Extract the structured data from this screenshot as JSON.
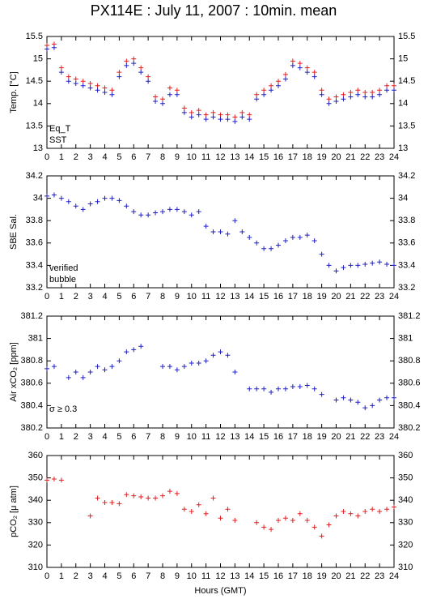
{
  "title": "PX114E : July 11, 2007 : 10min. mean",
  "chart_data": [
    {
      "type": "scatter",
      "ylabel": "Temp. [°C]",
      "xlim": [
        0,
        24
      ],
      "xticks": [
        0,
        1,
        2,
        3,
        4,
        5,
        6,
        7,
        8,
        9,
        10,
        11,
        12,
        13,
        14,
        15,
        16,
        17,
        18,
        19,
        20,
        21,
        22,
        23,
        24
      ],
      "ylim": [
        13,
        15.5
      ],
      "yticks": [
        13,
        13.5,
        14,
        14.5,
        15,
        15.5
      ],
      "x": [
        0,
        0.5,
        1,
        1.5,
        2,
        2.5,
        3,
        3.5,
        4,
        4.5,
        5,
        5.5,
        6,
        6.5,
        7,
        7.5,
        8,
        8.5,
        9,
        9.5,
        10,
        10.5,
        11,
        11.5,
        12,
        12.5,
        13,
        13.5,
        14,
        14.5,
        15,
        15.5,
        16,
        16.5,
        17,
        17.5,
        18,
        18.5,
        19,
        19.5,
        20,
        20.5,
        21,
        21.5,
        22,
        22.5,
        23,
        23.5,
        24
      ],
      "series": [
        {
          "name": "Eq_T",
          "color": "#e02020",
          "values": [
            15.3,
            15.33,
            14.8,
            14.6,
            14.55,
            14.5,
            14.45,
            14.4,
            14.35,
            14.3,
            14.7,
            14.95,
            15.0,
            14.8,
            14.6,
            14.15,
            14.1,
            14.35,
            14.3,
            13.9,
            13.8,
            13.85,
            13.75,
            13.8,
            13.75,
            13.75,
            13.7,
            13.8,
            13.75,
            14.2,
            14.3,
            14.4,
            14.5,
            14.65,
            14.95,
            14.9,
            14.8,
            14.7,
            14.3,
            14.1,
            14.15,
            14.2,
            14.25,
            14.3,
            14.25,
            14.25,
            14.3,
            14.4,
            14.4
          ]
        },
        {
          "name": "SST",
          "color": "#2020c0",
          "values": [
            15.22,
            15.25,
            14.7,
            14.5,
            14.45,
            14.4,
            14.35,
            14.3,
            14.25,
            14.2,
            14.6,
            14.85,
            14.9,
            14.7,
            14.5,
            14.05,
            14.0,
            14.2,
            14.2,
            13.8,
            13.7,
            13.75,
            13.65,
            13.7,
            13.65,
            13.65,
            13.6,
            13.7,
            13.65,
            14.1,
            14.2,
            14.3,
            14.4,
            14.55,
            14.85,
            14.8,
            14.7,
            14.6,
            14.2,
            14.0,
            14.05,
            14.1,
            14.15,
            14.2,
            14.15,
            14.15,
            14.2,
            14.3,
            14.3
          ]
        }
      ]
    },
    {
      "type": "scatter",
      "ylabel": "SBE Sal.",
      "xlim": [
        0,
        24
      ],
      "xticks": [
        0,
        1,
        2,
        3,
        4,
        5,
        6,
        7,
        8,
        9,
        10,
        11,
        12,
        13,
        14,
        15,
        16,
        17,
        18,
        19,
        20,
        21,
        22,
        23,
        24
      ],
      "ylim": [
        33.2,
        34.2
      ],
      "yticks": [
        33.2,
        33.4,
        33.6,
        33.8,
        34,
        34.2
      ],
      "x": [
        0,
        0.5,
        1,
        1.5,
        2,
        2.5,
        3,
        3.5,
        4,
        4.5,
        5,
        5.5,
        6,
        6.5,
        7,
        7.5,
        8,
        8.5,
        9,
        9.5,
        10,
        10.5,
        11,
        11.5,
        12,
        12.5,
        13,
        13.5,
        14,
        14.5,
        15,
        15.5,
        16,
        16.5,
        17,
        17.5,
        18,
        18.5,
        19,
        19.5,
        20,
        20.5,
        21,
        21.5,
        22,
        22.5,
        23,
        23.5,
        24
      ],
      "series": [
        {
          "name": "verified",
          "color": "#2020c0",
          "values": [
            34.02,
            34.03,
            34.0,
            33.97,
            33.93,
            33.9,
            33.95,
            33.97,
            34.0,
            34.0,
            33.98,
            33.93,
            33.88,
            33.85,
            33.85,
            33.87,
            33.88,
            33.9,
            33.9,
            33.88,
            33.85,
            33.88,
            33.75,
            33.7,
            33.7,
            33.68,
            33.8,
            33.7,
            33.65,
            33.6,
            33.55,
            33.55,
            33.58,
            33.62,
            33.65,
            33.65,
            33.67,
            33.62,
            33.5,
            33.4,
            33.35,
            33.38,
            33.4,
            33.4,
            33.41,
            33.42,
            33.43,
            33.41,
            33.4
          ]
        },
        {
          "name": "bubble",
          "color": "#d020d0",
          "values": [
            null,
            null,
            null,
            null,
            null,
            null,
            null,
            null,
            null,
            null,
            null,
            null,
            null,
            null,
            null,
            null,
            null,
            null,
            null,
            null,
            null,
            null,
            null,
            null,
            null,
            null,
            null,
            null,
            null,
            null,
            null,
            null,
            null,
            null,
            null,
            null,
            null,
            null,
            null,
            null,
            null,
            null,
            null,
            null,
            null,
            null,
            null,
            null,
            null
          ]
        }
      ]
    },
    {
      "type": "scatter",
      "ylabel": "Air xCO₂ [ppm]",
      "annotation": "σ ≥ 0.3",
      "annotation_color": "#d020d0",
      "xlim": [
        0,
        24
      ],
      "xticks": [
        0,
        1,
        2,
        3,
        4,
        5,
        6,
        7,
        8,
        9,
        10,
        11,
        12,
        13,
        14,
        15,
        16,
        17,
        18,
        19,
        20,
        21,
        22,
        23,
        24
      ],
      "ylim": [
        380.2,
        381.2
      ],
      "yticks": [
        380.2,
        380.4,
        380.6,
        380.8,
        381,
        381.2
      ],
      "x": [
        0,
        0.5,
        1,
        1.5,
        2,
        2.5,
        3,
        3.5,
        4,
        4.5,
        5,
        5.5,
        6,
        6.5,
        7,
        7.5,
        8,
        8.5,
        9,
        9.5,
        10,
        10.5,
        11,
        11.5,
        12,
        12.5,
        13,
        13.5,
        14,
        14.5,
        15,
        15.5,
        16,
        16.5,
        17,
        17.5,
        18,
        18.5,
        19,
        19.5,
        20,
        20.5,
        21,
        21.5,
        22,
        22.5,
        23,
        23.5,
        24
      ],
      "series": [
        {
          "color": "#2020c0",
          "values": [
            380.73,
            380.75,
            null,
            380.65,
            380.7,
            380.65,
            380.7,
            380.75,
            380.72,
            380.75,
            380.8,
            380.88,
            380.9,
            380.93,
            null,
            null,
            380.75,
            380.75,
            380.72,
            380.75,
            380.78,
            380.78,
            380.8,
            380.85,
            380.88,
            380.85,
            380.7,
            null,
            380.55,
            380.55,
            380.55,
            380.52,
            380.55,
            380.55,
            380.57,
            380.57,
            380.58,
            380.55,
            380.5,
            null,
            380.45,
            380.47,
            380.45,
            380.43,
            380.38,
            380.4,
            380.45,
            380.47,
            380.47
          ]
        }
      ]
    },
    {
      "type": "scatter",
      "ylabel": "pCO₂ [μ atm]",
      "xlabel": "Hours (GMT)",
      "xlim": [
        0,
        24
      ],
      "xticks": [
        0,
        1,
        2,
        3,
        4,
        5,
        6,
        7,
        8,
        9,
        10,
        11,
        12,
        13,
        14,
        15,
        16,
        17,
        18,
        19,
        20,
        21,
        22,
        23,
        24
      ],
      "ylim": [
        310,
        360
      ],
      "yticks": [
        310,
        320,
        330,
        340,
        350,
        360
      ],
      "x": [
        0,
        0.5,
        1,
        1.5,
        2,
        2.5,
        3,
        3.5,
        4,
        4.5,
        5,
        5.5,
        6,
        6.5,
        7,
        7.5,
        8,
        8.5,
        9,
        9.5,
        10,
        10.5,
        11,
        11.5,
        12,
        12.5,
        13,
        13.5,
        14,
        14.5,
        15,
        15.5,
        16,
        16.5,
        17,
        17.5,
        18,
        18.5,
        19,
        19.5,
        20,
        20.5,
        21,
        21.5,
        22,
        22.5,
        23,
        23.5,
        24
      ],
      "series": [
        {
          "color": "#e02020",
          "values": [
            349,
            349.5,
            349,
            null,
            null,
            null,
            333,
            341,
            339,
            339,
            338.5,
            342.5,
            342,
            341.5,
            341,
            341,
            342,
            344,
            343,
            336,
            335,
            338,
            334,
            341,
            332,
            336,
            331,
            null,
            null,
            330,
            328,
            327,
            331,
            332,
            331,
            334,
            331,
            328,
            324,
            329,
            333,
            335,
            334,
            333,
            335,
            336,
            335,
            336,
            337
          ]
        }
      ]
    }
  ]
}
